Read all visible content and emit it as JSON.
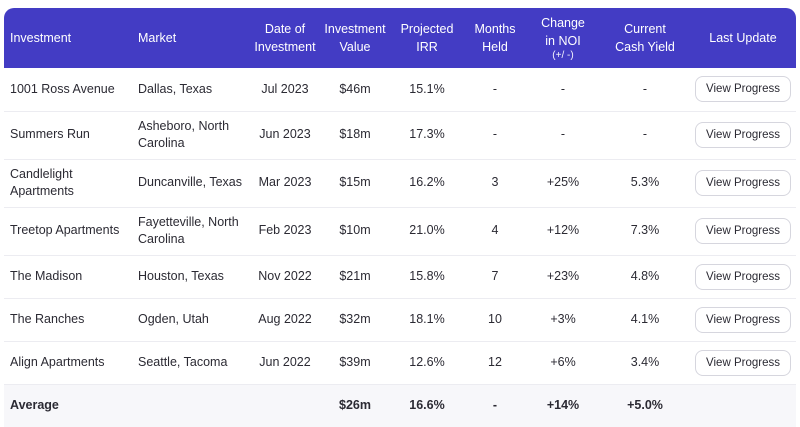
{
  "theme": {
    "header_bg": "#433CC4",
    "header_text": "#ffffff",
    "body_text": "#2b2a33",
    "row_divider": "#ececf1",
    "average_row_bg": "#f7f7fa",
    "button_border": "#d6d6de"
  },
  "table": {
    "header": {
      "columns": [
        {
          "lines": [
            "Investment"
          ],
          "align": "left"
        },
        {
          "lines": [
            "Market"
          ],
          "align": "left"
        },
        {
          "lines": [
            "Date of",
            "Investment"
          ],
          "align": "center"
        },
        {
          "lines": [
            "Investment",
            "Value"
          ],
          "align": "center"
        },
        {
          "lines": [
            "Projected",
            "IRR"
          ],
          "align": "center"
        },
        {
          "lines": [
            "Months",
            "Held"
          ],
          "align": "center"
        },
        {
          "lines": [
            "Change",
            "in NOI"
          ],
          "sub": "(+/ -)",
          "align": "center"
        },
        {
          "lines": [
            "Current",
            "Cash Yield"
          ],
          "align": "center"
        },
        {
          "lines": [
            "Last Update"
          ],
          "align": "center"
        }
      ]
    },
    "rows": [
      {
        "investment": "1001 Ross Avenue",
        "market": "Dallas, Texas",
        "date": "Jul 2023",
        "value": "$46m",
        "irr": "15.1%",
        "months": "-",
        "noi": "-",
        "yield": "-",
        "action": "View Progress"
      },
      {
        "investment": "Summers Run",
        "market": "Asheboro, North Carolina",
        "date": "Jun 2023",
        "value": "$18m",
        "irr": "17.3%",
        "months": "-",
        "noi": "-",
        "yield": "-",
        "action": "View Progress"
      },
      {
        "investment": "Candlelight Apartments",
        "market": "Duncanville, Texas",
        "date": "Mar 2023",
        "value": "$15m",
        "irr": "16.2%",
        "months": "3",
        "noi": "+25%",
        "yield": "5.3%",
        "action": "View Progress"
      },
      {
        "investment": "Treetop Apartments",
        "market": "Fayetteville, North Carolina",
        "date": "Feb 2023",
        "value": "$10m",
        "irr": "21.0%",
        "months": "4",
        "noi": "+12%",
        "yield": "7.3%",
        "action": "View Progress"
      },
      {
        "investment": "The Madison",
        "market": "Houston, Texas",
        "date": "Nov 2022",
        "value": "$21m",
        "irr": "15.8%",
        "months": "7",
        "noi": "+23%",
        "yield": "4.8%",
        "action": "View Progress"
      },
      {
        "investment": "The Ranches",
        "market": "Ogden, Utah",
        "date": "Aug 2022",
        "value": "$32m",
        "irr": "18.1%",
        "months": "10",
        "noi": "+3%",
        "yield": "4.1%",
        "action": "View Progress"
      },
      {
        "investment": "Align Apartments",
        "market": "Seattle, Tacoma",
        "date": "Jun 2022",
        "value": "$39m",
        "irr": "12.6%",
        "months": "12",
        "noi": "+6%",
        "yield": "3.4%",
        "action": "View Progress"
      }
    ],
    "average": {
      "investment": "Average",
      "market": "",
      "date": "",
      "value": "$26m",
      "irr": "16.6%",
      "months": "-",
      "noi": "+14%",
      "yield": "+5.0%",
      "action": ""
    }
  }
}
